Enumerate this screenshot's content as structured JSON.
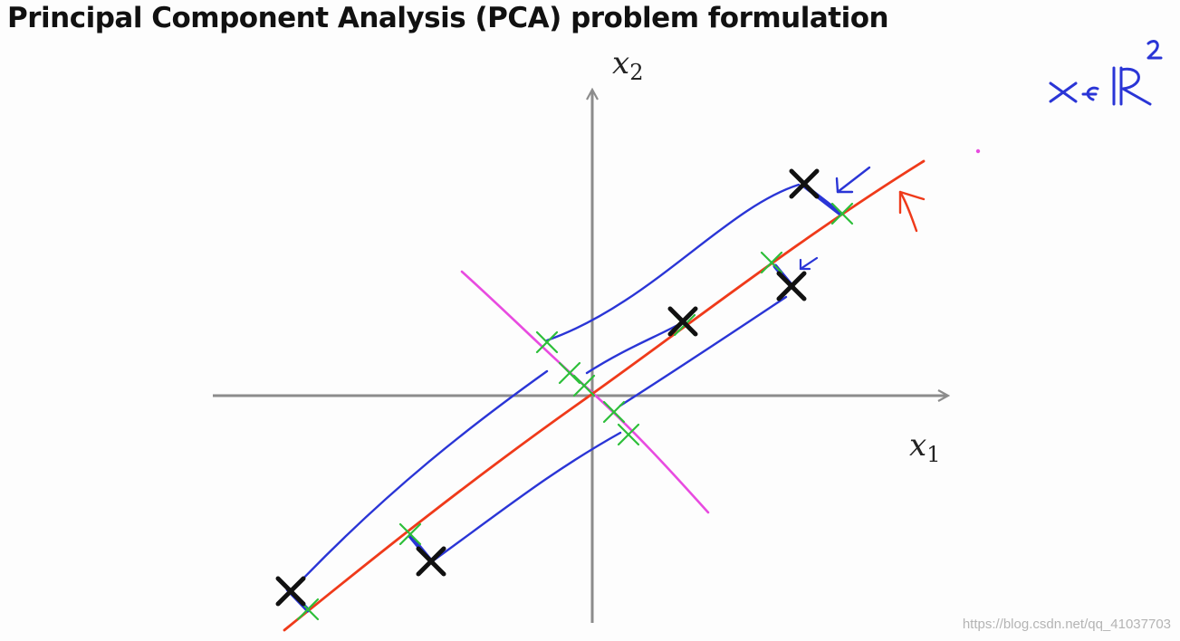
{
  "title": "Principal Component Analysis (PCA) problem formulation",
  "axes": {
    "x_label": {
      "var": "x",
      "sub": "1"
    },
    "y_label": {
      "var": "x",
      "sub": "2"
    }
  },
  "annotation": {
    "text": "x∈ℝ²",
    "handwritten": true
  },
  "watermark": "https://blog.csdn.net/qq_41037703",
  "colors": {
    "axes": "#8c8c8c",
    "principal_line": "#ef3a1a",
    "orthogonal_line": "#e84be0",
    "projection_curves": "#2a35d6",
    "data_points": "#111111",
    "projected_points": "#2dbf3a",
    "annotation": "#2a35d6"
  },
  "icons": {
    "data_point": "x-mark-icon",
    "projected_point": "green-cross-icon",
    "arrow": "arrow-icon"
  }
}
